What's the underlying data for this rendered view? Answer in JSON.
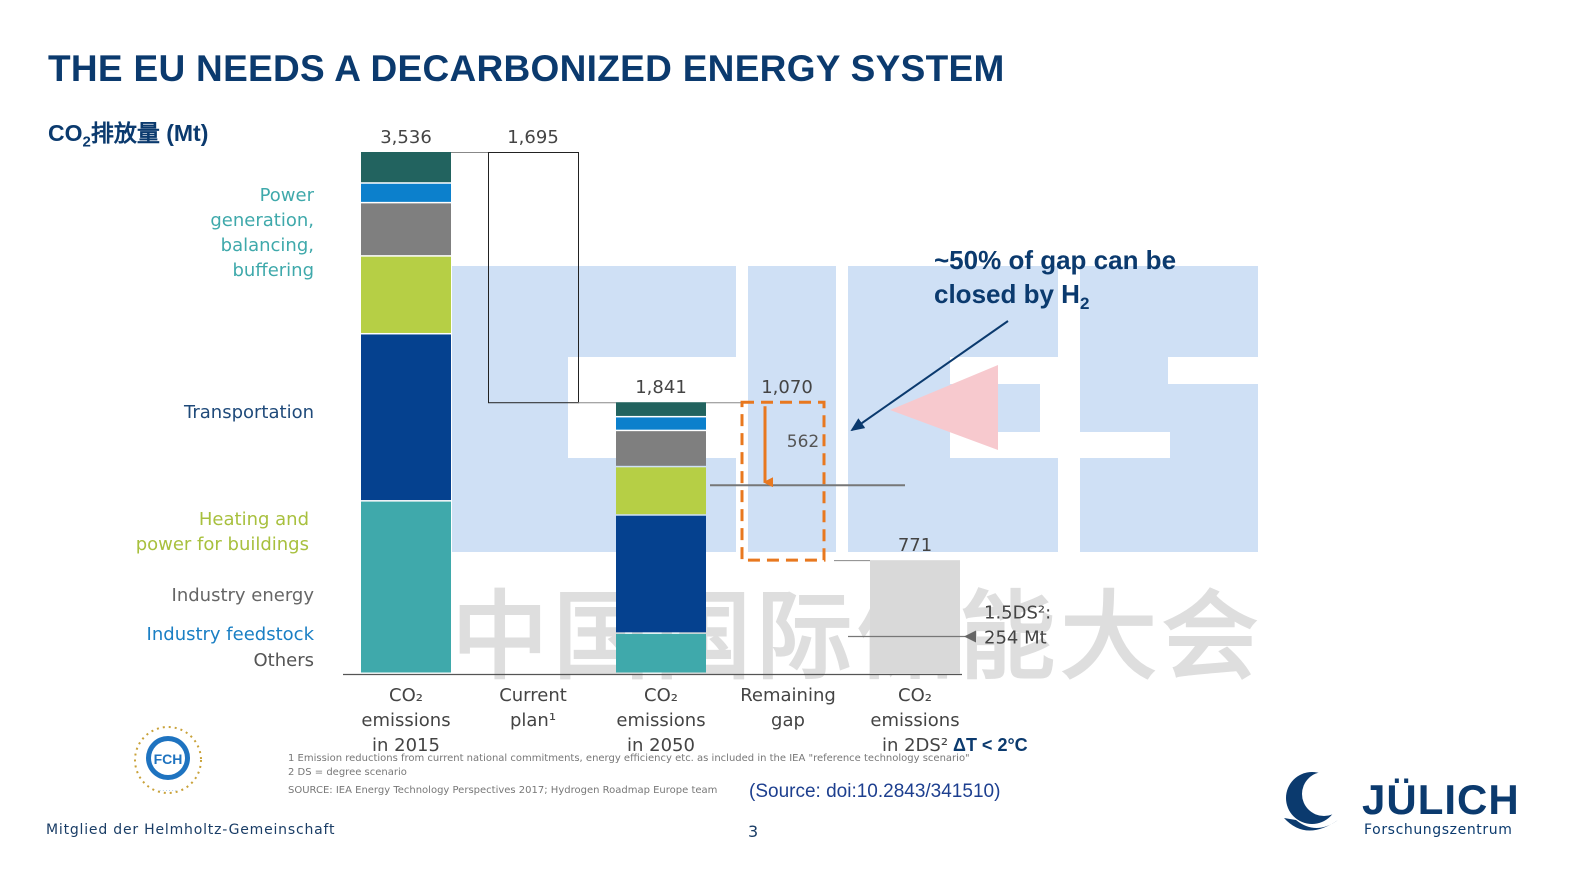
{
  "slide": {
    "title": "THE EU NEEDS A DECARBONIZED ENERGY SYSTEM",
    "unit_label_prefix": "CO",
    "unit_label_sub": "2",
    "unit_label_suffix": "排放量 (Mt)",
    "callout_line1": "~50% of gap can be",
    "callout_line2_prefix": "closed by H",
    "callout_line2_sub": "2",
    "footnote1": "1 Emission reductions from current national commitments, energy efficiency etc. as included in the IEA \"reference technology scenario\"",
    "footnote2": "2 DS = degree scenario",
    "source_note": "SOURCE: IEA Energy Technology Perspectives 2017; Hydrogen Roadmap Europe team",
    "source_ref": "(Source: doi:10.2843/341510)",
    "footer_text": "Mitglied der Helmholtz-Gemeinschaft",
    "page_number": "3",
    "brand_name": "JÜLICH",
    "brand_sub": "Forschungszentrum",
    "fch_logo_text": "FCH",
    "colors": {
      "title": "#0b3a6e",
      "power": "#3fa9ab",
      "transport": "#05418f",
      "heating": "#b6cf45",
      "industry_energy": "#7f7f7f",
      "industry_feedstock": "#0c80cc",
      "others": "#22635f",
      "gap_dash": "#e8781f",
      "target_bar": "#d9d9d9",
      "watermark": "#cfe0f5"
    }
  },
  "chart_data": {
    "type": "waterfall",
    "unit": "Mt",
    "y_range": [
      0,
      3536
    ],
    "segments": [
      "Power generation, balancing, buffering",
      "Transportation",
      "Heating and power for buildings",
      "Industry energy",
      "Industry feedstock",
      "Others"
    ],
    "segment_labels": [
      {
        "lines": [
          "Power",
          "generation,",
          "balancing,",
          "buffering"
        ],
        "color": "#3fa9ab"
      },
      {
        "lines": [
          "Transportation"
        ],
        "color": "#1f4a7a"
      },
      {
        "lines": [
          "Heating and",
          "power for buildings"
        ],
        "color": "#a8c03e"
      },
      {
        "lines": [
          "Industry energy"
        ],
        "color": "#666666"
      },
      {
        "lines": [
          "Industry feedstock"
        ],
        "color": "#1a7fc4"
      },
      {
        "lines": [
          "Others"
        ],
        "color": "#555555"
      }
    ],
    "bars": [
      {
        "id": "emissions-2015",
        "kind": "stacked",
        "total": 3536,
        "total_label": "3,536",
        "values": [
          1168,
          1132,
          527,
          361,
          133,
          215
        ],
        "category_lines": [
          "CO₂",
          "emissions",
          "in 2015"
        ]
      },
      {
        "id": "current-plan",
        "kind": "floating",
        "from": 1841,
        "to": 3536,
        "total_label": "1,695",
        "category_lines": [
          "Current",
          "plan¹"
        ]
      },
      {
        "id": "emissions-2050",
        "kind": "stacked",
        "total": 1841,
        "total_label": "1,841",
        "values": [
          272,
          800,
          328,
          245,
          93,
          103
        ],
        "category_lines": [
          "CO₂",
          "emissions",
          "in 2050"
        ]
      },
      {
        "id": "remaining-gap",
        "kind": "floating-dashed",
        "from": 771,
        "to": 1841,
        "total_label": "1,070",
        "category_lines": [
          "Remaining",
          "gap"
        ]
      },
      {
        "id": "emissions-2ds",
        "kind": "solid",
        "total": 771,
        "total_label": "771",
        "category_lines": [
          "CO₂",
          "emissions",
          "in 2DS²"
        ]
      }
    ],
    "h2_reduction": {
      "value": 562,
      "label": "562"
    },
    "target_marker": {
      "value": 254,
      "lines": [
        "1.5DS²:",
        "254 Mt"
      ]
    },
    "delta_t_label": "ΔT < 2°C",
    "watermark_text": "CIES",
    "watermark_cn": "中国国际储能大会"
  }
}
